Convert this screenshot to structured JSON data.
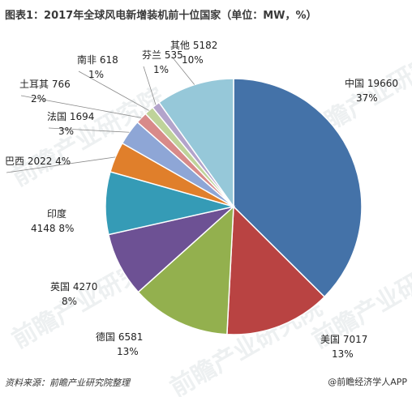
{
  "header": {
    "title": "图表1：2017年全球风电新增装机前十位国家（单位：MW，%）"
  },
  "chart_data": {
    "type": "pie",
    "title": "图表1：2017年全球风电新增装机前十位国家（单位：MW，%）",
    "unit": "MW",
    "slices": [
      {
        "label": "中国",
        "value": 19660,
        "value_text": "19660",
        "percent": "37%",
        "color": "#4472a8"
      },
      {
        "label": "美国",
        "value": 7017,
        "value_text": "7017",
        "percent": "13%",
        "color": "#b94342"
      },
      {
        "label": "德国",
        "value": 6581,
        "value_text": "6581",
        "percent": "13%",
        "color": "#93b04e"
      },
      {
        "label": "英国",
        "value": 4270,
        "value_text": "4270",
        "percent": "8%",
        "color": "#6d5194"
      },
      {
        "label": "印度",
        "value": 4148,
        "value_text": "4148",
        "percent": "8%",
        "color": "#359bb6"
      },
      {
        "label": "巴西",
        "value": 2022,
        "value_text": "2022",
        "percent": "4%",
        "color": "#e07f2b"
      },
      {
        "label": "法国",
        "value": 1694,
        "value_text": "1694",
        "percent": "3%",
        "color": "#8ea6d6"
      },
      {
        "label": "土耳其",
        "value": 766,
        "value_text": "766",
        "percent": "2%",
        "color": "#d88a89"
      },
      {
        "label": "南非",
        "value": 618,
        "value_text": "618",
        "percent": "1%",
        "color": "#bfd39a"
      },
      {
        "label": "芬兰",
        "value": 535,
        "value_text": "535",
        "percent": "1%",
        "color": "#b3a4cb"
      },
      {
        "label": "其他",
        "value": 5182,
        "value_text": "5182",
        "percent": "10%",
        "color": "#96c8d9"
      }
    ]
  },
  "footer": {
    "source": "资料来源：前瞻产业研究院整理",
    "app": "@前瞻经济学人APP"
  },
  "watermark": {
    "text": "前瞻产业研究院"
  }
}
